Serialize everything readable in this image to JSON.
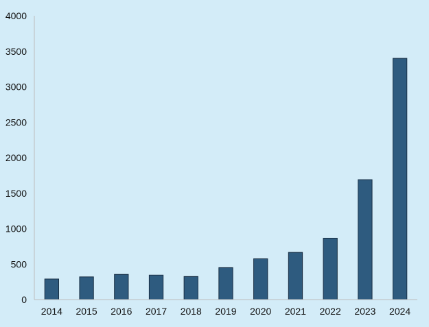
{
  "chart_data": {
    "type": "bar",
    "title": "",
    "xlabel": "",
    "ylabel": "",
    "categories": [
      "2014",
      "2015",
      "2016",
      "2017",
      "2018",
      "2019",
      "2020",
      "2021",
      "2022",
      "2023",
      "2024"
    ],
    "values": [
      290,
      320,
      355,
      345,
      325,
      450,
      575,
      665,
      865,
      1690,
      3400
    ],
    "ylim": [
      0,
      4000
    ],
    "yticks": [
      0,
      500,
      1000,
      1500,
      2000,
      2500,
      3000,
      3500,
      4000
    ],
    "grid": false,
    "legend": "none",
    "colors": {
      "background": "#d3ecf8",
      "bar": "#2e5b7f",
      "bar_edge": "#1a2f44",
      "axis": "#bcbcbc",
      "text": "#111111"
    }
  }
}
